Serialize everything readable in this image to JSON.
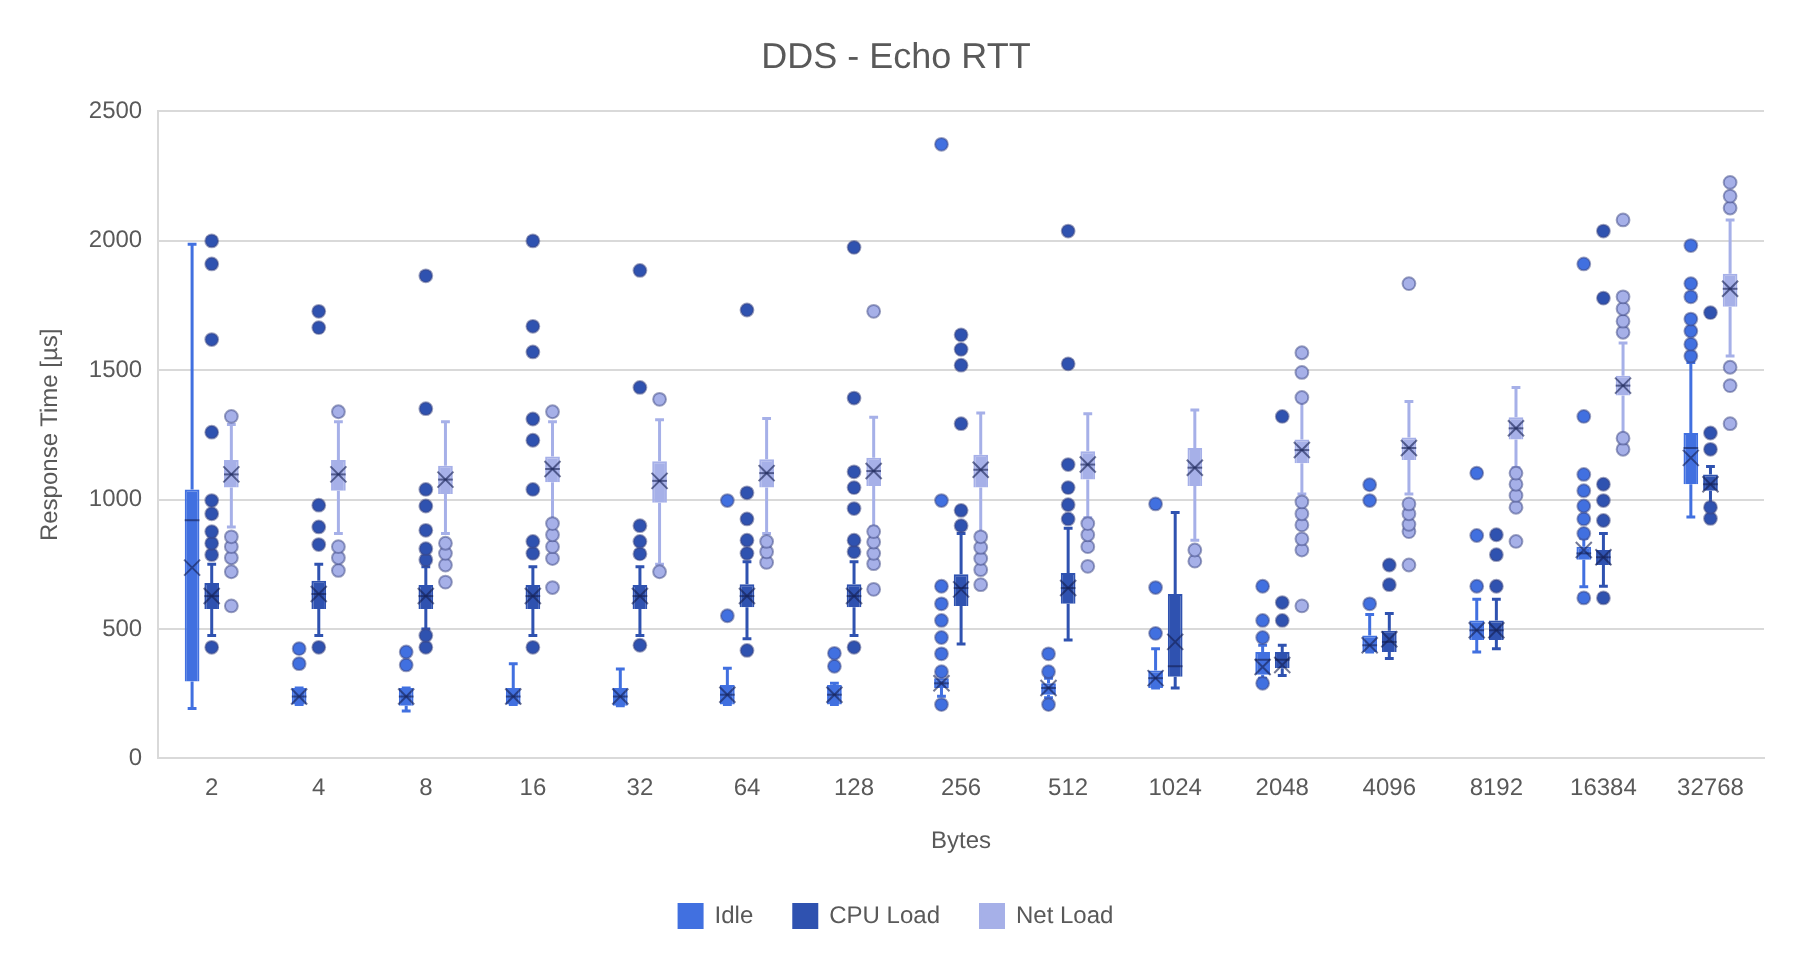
{
  "chart_data": {
    "type": "box",
    "title": "DDS - Echo RTT",
    "xlabel": "Bytes",
    "ylabel": "Response Time [µs]",
    "categories": [
      "2",
      "4",
      "8",
      "16",
      "32",
      "64",
      "128",
      "256",
      "512",
      "1024",
      "2048",
      "4096",
      "8192",
      "16384",
      "32768"
    ],
    "ylim": [
      0,
      2500
    ],
    "yticks": [
      0,
      500,
      1000,
      1500,
      2000,
      2500
    ],
    "grid": "y",
    "legend": "bottom",
    "series": [
      {
        "name": "Idle",
        "color": "#4170e0",
        "boxes": [
          {
            "low": 193,
            "q1": 297,
            "median": 920,
            "q3": 1039,
            "high": 1986,
            "mean": 737
          },
          {
            "low": 208,
            "q1": 208,
            "median": 239,
            "q3": 272,
            "high": 272,
            "mean": 239,
            "outliers": [
              366,
              424
            ]
          },
          {
            "low": 183,
            "q1": 203,
            "median": 239,
            "q3": 272,
            "high": 272,
            "mean": 239,
            "outliers": [
              361,
              411
            ]
          },
          {
            "low": 208,
            "q1": 208,
            "median": 239,
            "q3": 272,
            "high": 366,
            "mean": 239
          },
          {
            "low": 203,
            "q1": 203,
            "median": 239,
            "q3": 272,
            "high": 345,
            "mean": 239
          },
          {
            "low": 208,
            "q1": 208,
            "median": 246,
            "q3": 284,
            "high": 348,
            "mean": 246,
            "outliers": [
              551,
              996
            ]
          },
          {
            "low": 208,
            "q1": 208,
            "median": 246,
            "q3": 284,
            "high": 290,
            "mean": 246,
            "outliers": [
              356,
              406
            ]
          },
          {
            "low": 240,
            "q1": 272,
            "median": 290,
            "q3": 310,
            "high": 330,
            "mean": 290,
            "outliers": [
              208,
              335,
              404,
              467,
              533,
              597,
              665,
              996,
              2372
            ]
          },
          {
            "low": 234,
            "q1": 246,
            "median": 272,
            "q3": 290,
            "high": 310,
            "mean": 272,
            "outliers": [
              208,
              335,
              404
            ]
          },
          {
            "low": 272,
            "q1": 272,
            "median": 310,
            "q3": 340,
            "high": 424,
            "mean": 310,
            "outliers": [
              483,
              660,
              983
            ]
          },
          {
            "low": 310,
            "q1": 323,
            "median": 381,
            "q3": 411,
            "high": 437,
            "mean": 353,
            "outliers": [
              290,
              467,
              533,
              665
            ]
          },
          {
            "low": 411,
            "q1": 411,
            "median": 437,
            "q3": 475,
            "high": 556,
            "mean": 437,
            "outliers": [
              597,
              996,
              1057
            ]
          },
          {
            "low": 411,
            "q1": 457,
            "median": 495,
            "q3": 533,
            "high": 615,
            "mean": 495,
            "outliers": [
              665,
              861,
              1102
            ]
          },
          {
            "low": 663,
            "q1": 767,
            "median": 792,
            "q3": 818,
            "high": 850,
            "mean": 805,
            "outliers": [
              620,
              869,
              925,
              975,
              1034,
              1097,
              1321,
              1910
            ]
          },
          {
            "low": 932,
            "q1": 1059,
            "median": 1199,
            "q3": 1257,
            "high": 1529,
            "mean": 1161,
            "outliers": [
              1554,
              1600,
              1651,
              1697,
              1783,
              1834,
              1981
            ]
          }
        ]
      },
      {
        "name": "CPU Load",
        "color": "#2f52b0",
        "boxes": [
          {
            "low": 475,
            "q1": 577,
            "median": 627,
            "q3": 678,
            "high": 750,
            "mean": 627,
            "outliers": [
              429,
              787,
              831,
              876,
              945,
              996,
              1260,
              1618,
              1910,
              1999
            ]
          },
          {
            "low": 475,
            "q1": 577,
            "median": 635,
            "q3": 686,
            "high": 750,
            "mean": 635,
            "outliers": [
              429,
              826,
              894,
              978,
              1664,
              1727
            ]
          },
          {
            "low": 500,
            "q1": 577,
            "median": 627,
            "q3": 670,
            "high": 740,
            "mean": 627,
            "outliers": [
              429,
              475,
              767,
              810,
              881,
              975,
              1039,
              1351,
              1864
            ]
          },
          {
            "low": 475,
            "q1": 577,
            "median": 627,
            "q3": 670,
            "high": 740,
            "mean": 627,
            "outliers": [
              429,
              792,
              838,
              1039,
              1229,
              1311,
              1570,
              1669,
              1999
            ]
          },
          {
            "low": 475,
            "q1": 577,
            "median": 627,
            "q3": 670,
            "high": 740,
            "mean": 627,
            "outliers": [
              437,
              790,
              838,
              899,
              1433,
              1885
            ]
          },
          {
            "low": 462,
            "q1": 584,
            "median": 627,
            "q3": 673,
            "high": 760,
            "mean": 627,
            "outliers": [
              417,
              792,
              843,
              925,
              1026,
              1732
            ]
          },
          {
            "low": 475,
            "q1": 584,
            "median": 627,
            "q3": 673,
            "high": 760,
            "mean": 627,
            "outliers": [
              429,
              798,
              843,
              965,
              1046,
              1107,
              1392,
              1974
            ]
          },
          {
            "low": 442,
            "q1": 589,
            "median": 658,
            "q3": 711,
            "high": 869,
            "mean": 653,
            "outliers": [
              899,
              958,
              1293,
              1519,
              1580,
              1636
            ]
          },
          {
            "low": 457,
            "q1": 597,
            "median": 658,
            "q3": 716,
            "high": 889,
            "mean": 658,
            "outliers": [
              925,
              980,
              1046,
              1135,
              1524,
              2037
            ]
          },
          {
            "low": 272,
            "q1": 315,
            "median": 356,
            "q3": 635,
            "high": 950,
            "mean": 450
          },
          {
            "low": 320,
            "q1": 348,
            "median": 381,
            "q3": 411,
            "high": 437,
            "mean": 361,
            "outliers": [
              533,
              602,
              1321
            ]
          },
          {
            "low": 386,
            "q1": 411,
            "median": 450,
            "q3": 493,
            "high": 560,
            "mean": 460,
            "outliers": [
              671,
              747
            ]
          },
          {
            "low": 424,
            "q1": 457,
            "median": 495,
            "q3": 533,
            "high": 615,
            "mean": 495,
            "outliers": [
              665,
              787,
              864
            ]
          },
          {
            "low": 665,
            "q1": 747,
            "median": 777,
            "q3": 805,
            "high": 869,
            "mean": 777,
            "outliers": [
              620,
              919,
              996,
              1059,
              1778,
              2037
            ]
          },
          {
            "low": 983,
            "q1": 1034,
            "median": 1059,
            "q3": 1097,
            "high": 1128,
            "mean": 1059,
            "outliers": [
              927,
              970,
              1194,
              1257,
              1722
            ]
          }
        ]
      },
      {
        "name": "Net Load",
        "color": "#a6b0e8",
        "boxes": [
          {
            "low": 894,
            "q1": 1046,
            "median": 1097,
            "q3": 1153,
            "high": 1290,
            "mean": 1097,
            "outliers": [
              589,
              721,
              775,
              818,
              856,
              1321
            ]
          },
          {
            "low": 869,
            "q1": 1034,
            "median": 1097,
            "q3": 1153,
            "high": 1300,
            "mean": 1097,
            "outliers": [
              726,
              775,
              818,
              1339
            ]
          },
          {
            "low": 869,
            "q1": 1021,
            "median": 1077,
            "q3": 1130,
            "high": 1300,
            "mean": 1077,
            "outliers": [
              681,
              747,
              792,
              831
            ]
          },
          {
            "low": 919,
            "q1": 1067,
            "median": 1118,
            "q3": 1166,
            "high": 1300,
            "mean": 1118,
            "outliers": [
              660,
              772,
              818,
              864,
              907,
              1339
            ]
          },
          {
            "low": 750,
            "q1": 988,
            "median": 1072,
            "q3": 1148,
            "high": 1308,
            "mean": 1072,
            "outliers": [
              721,
              1387
            ]
          },
          {
            "low": 869,
            "q1": 1046,
            "median": 1102,
            "q3": 1156,
            "high": 1313,
            "mean": 1102,
            "outliers": [
              757,
              798,
              838
            ]
          },
          {
            "low": 894,
            "q1": 1052,
            "median": 1110,
            "q3": 1161,
            "high": 1318,
            "mean": 1110,
            "outliers": [
              653,
              752,
              792,
              836,
              876,
              1727
            ]
          },
          {
            "low": 869,
            "q1": 1046,
            "median": 1115,
            "q3": 1173,
            "high": 1334,
            "mean": 1115,
            "outliers": [
              671,
              729,
              772,
              815,
              856
            ]
          },
          {
            "low": 930,
            "q1": 1077,
            "median": 1135,
            "q3": 1186,
            "high": 1331,
            "mean": 1135,
            "outliers": [
              742,
              818,
              864,
              907
            ]
          },
          {
            "low": 843,
            "q1": 1052,
            "median": 1123,
            "q3": 1199,
            "high": 1346,
            "mean": 1123,
            "outliers": [
              762,
              805
            ]
          },
          {
            "low": 1021,
            "q1": 1140,
            "median": 1191,
            "q3": 1232,
            "high": 1380,
            "mean": 1191,
            "outliers": [
              589,
              805,
              848,
              902,
              945,
              991,
              1394,
              1491,
              1567
            ]
          },
          {
            "low": 1021,
            "q1": 1153,
            "median": 1199,
            "q3": 1240,
            "high": 1379,
            "mean": 1199,
            "outliers": [
              747,
              876,
              904,
              945,
              983,
              1834
            ]
          },
          {
            "low": 1123,
            "q1": 1232,
            "median": 1275,
            "q3": 1318,
            "high": 1433,
            "mean": 1275,
            "outliers": [
              838,
              970,
              1016,
              1059,
              1102
            ]
          },
          {
            "low": 1250,
            "q1": 1402,
            "median": 1440,
            "q3": 1478,
            "high": 1605,
            "mean": 1440,
            "outliers": [
              1194,
              1237,
              1646,
              1689,
              1737,
              1783,
              2080
            ]
          },
          {
            "low": 1554,
            "q1": 1745,
            "median": 1814,
            "q3": 1872,
            "high": 2080,
            "mean": 1814,
            "outliers": [
              1293,
              1440,
              1511,
              2126,
              2172,
              2225
            ]
          }
        ]
      }
    ]
  }
}
